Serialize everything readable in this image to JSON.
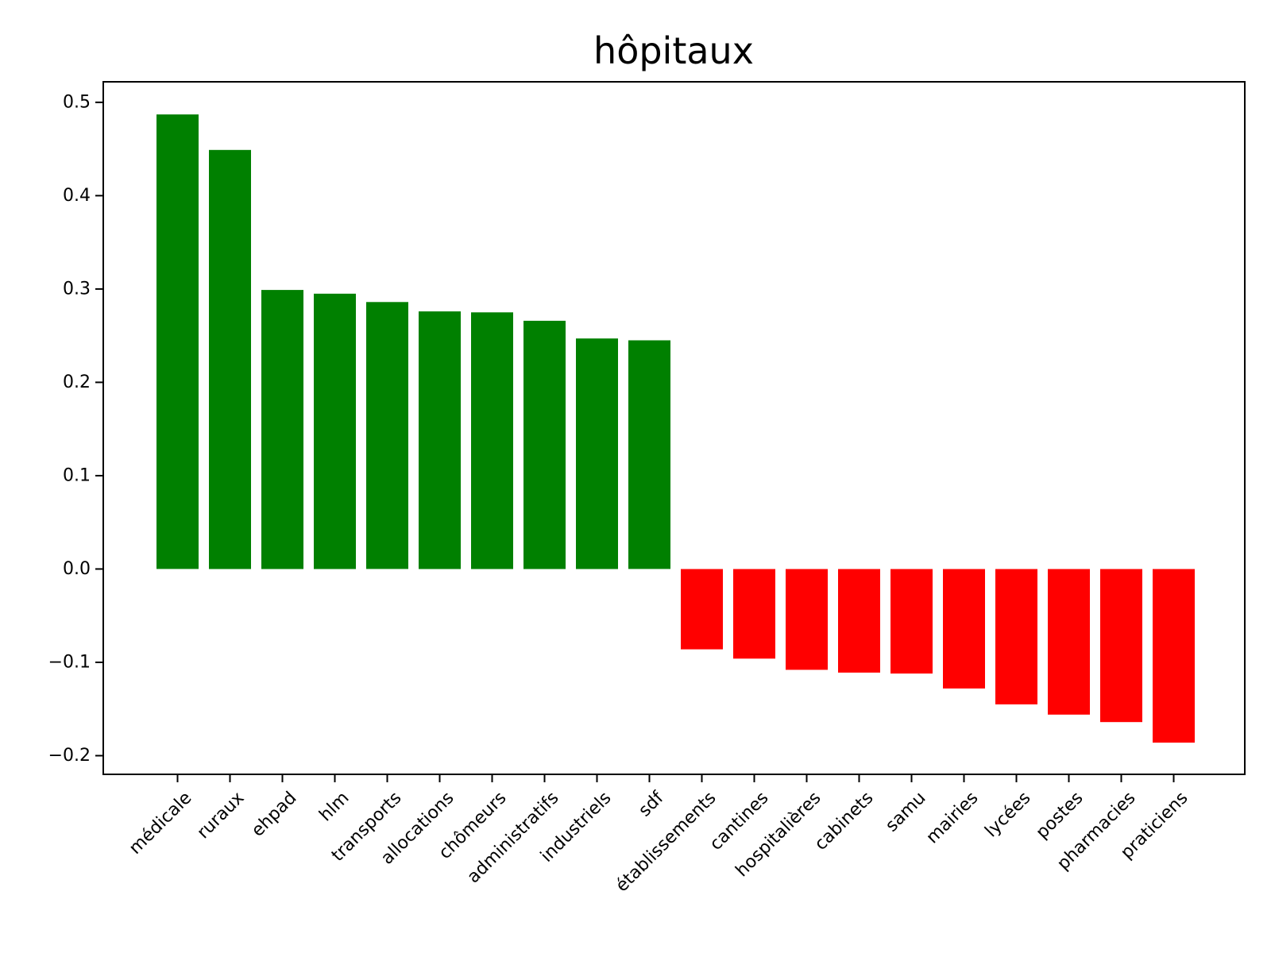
{
  "chart_data": {
    "type": "bar",
    "title": "hôpitaux",
    "xlabel": "",
    "ylabel": "",
    "ylim": [
      -0.22,
      0.522
    ],
    "yticks": [
      {
        "value": 0.5,
        "label": "0.5"
      },
      {
        "value": 0.4,
        "label": "0.4"
      },
      {
        "value": 0.3,
        "label": "0.3"
      },
      {
        "value": 0.2,
        "label": "0.2"
      },
      {
        "value": 0.1,
        "label": "0.1"
      },
      {
        "value": 0.0,
        "label": "0.0"
      },
      {
        "value": -0.1,
        "label": "−0.1"
      },
      {
        "value": -0.2,
        "label": "−0.2"
      }
    ],
    "categories": [
      "médicale",
      "ruraux",
      "ehpad",
      "hlm",
      "transports",
      "allocations",
      "chômeurs",
      "administratifs",
      "industriels",
      "sdf",
      "établissements",
      "cantines",
      "hospitalières",
      "cabinets",
      "samu",
      "mairies",
      "lycées",
      "postes",
      "pharmacies",
      "praticiens"
    ],
    "values": [
      0.487,
      0.449,
      0.299,
      0.295,
      0.286,
      0.276,
      0.275,
      0.266,
      0.247,
      0.245,
      -0.086,
      -0.096,
      -0.108,
      -0.111,
      -0.112,
      -0.128,
      -0.145,
      -0.156,
      -0.164,
      -0.186
    ],
    "colors": {
      "positive": "#008000",
      "negative": "#ff0000",
      "axis": "#000000"
    },
    "grid": false,
    "legend": "none"
  }
}
